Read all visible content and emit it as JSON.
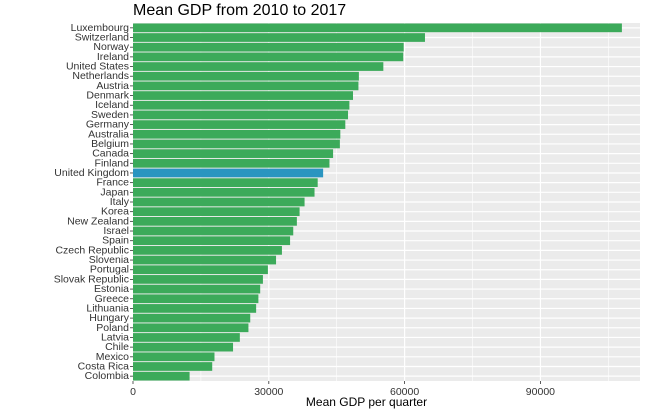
{
  "chart_data": {
    "type": "bar",
    "orientation": "horizontal",
    "title": "Mean GDP from 2010 to 2017",
    "xlabel": "Mean GDP per quarter",
    "ylabel": "",
    "xlim": [
      0,
      112000
    ],
    "xticks": [
      0,
      30000,
      60000,
      90000
    ],
    "grid": true,
    "legend": "none",
    "categories": [
      "Luxembourg",
      "Switzerland",
      "Norway",
      "Ireland",
      "United States",
      "Netherlands",
      "Austria",
      "Denmark",
      "Iceland",
      "Sweden",
      "Germany",
      "Australia",
      "Belgium",
      "Canada",
      "Finland",
      "United Kingdom",
      "France",
      "Japan",
      "Italy",
      "Korea",
      "New Zealand",
      "Israel",
      "Spain",
      "Czech Republic",
      "Slovenia",
      "Portugal",
      "Slovak Republic",
      "Estonia",
      "Greece",
      "Lithuania",
      "Hungary",
      "Poland",
      "Latvia",
      "Chile",
      "Mexico",
      "Costa Rica",
      "Colombia"
    ],
    "values": [
      108000,
      64500,
      59800,
      59700,
      55300,
      49900,
      49800,
      48600,
      47800,
      47500,
      46900,
      45800,
      45700,
      44200,
      43400,
      42000,
      40800,
      40100,
      37900,
      36800,
      36200,
      35400,
      34700,
      32900,
      31600,
      29800,
      28700,
      28100,
      27700,
      27200,
      25900,
      25500,
      23600,
      22100,
      18000,
      17500,
      12500
    ],
    "highlight": "United Kingdom",
    "colors": {
      "bar": "#3CAA5A",
      "highlight": "#2A95C0",
      "panel": "#EBEBEB",
      "grid": "#FFFFFF"
    }
  }
}
